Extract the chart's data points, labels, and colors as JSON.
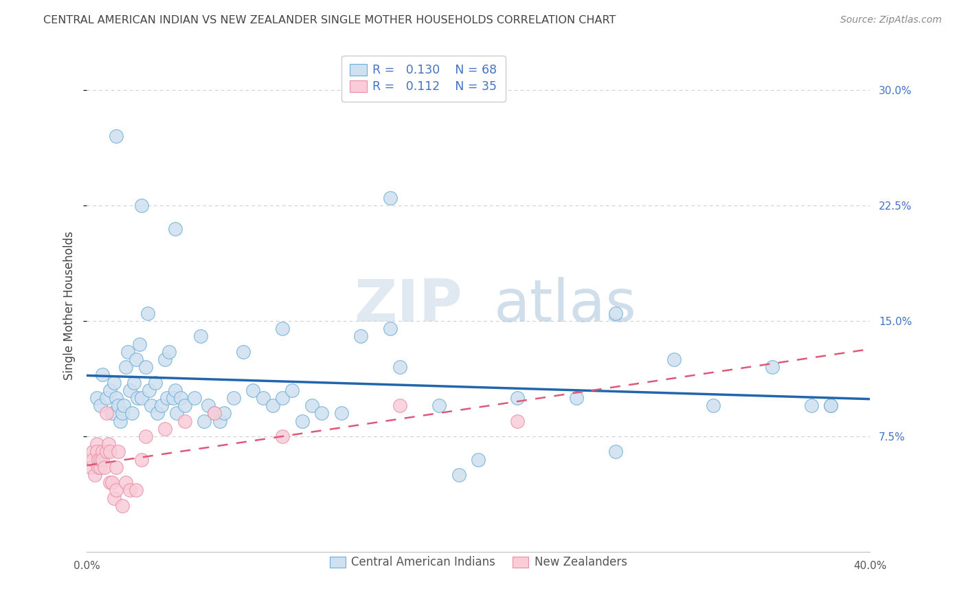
{
  "title": "CENTRAL AMERICAN INDIAN VS NEW ZEALANDER SINGLE MOTHER HOUSEHOLDS CORRELATION CHART",
  "source": "Source: ZipAtlas.com",
  "ylabel": "Single Mother Households",
  "xlim": [
    0.0,
    0.4
  ],
  "ylim": [
    0.0,
    0.32
  ],
  "yticks": [
    0.075,
    0.15,
    0.225,
    0.3
  ],
  "ytick_labels": [
    "7.5%",
    "15.0%",
    "22.5%",
    "30.0%"
  ],
  "legend_blue_r": "0.130",
  "legend_blue_n": "68",
  "legend_pink_r": "0.112",
  "legend_pink_n": "35",
  "legend_label_blue": "Central American Indians",
  "legend_label_pink": "New Zealanders",
  "blue_fill": "#cfe0f0",
  "blue_edge": "#6aaed6",
  "pink_fill": "#f9ccd8",
  "pink_edge": "#e88fa4",
  "blue_line_color": "#2166ac",
  "pink_line_color": "#e05878",
  "watermark_color": "#d8e8f4",
  "blue_scatter_x": [
    0.005,
    0.007,
    0.008,
    0.01,
    0.012,
    0.013,
    0.014,
    0.015,
    0.016,
    0.017,
    0.018,
    0.019,
    0.02,
    0.021,
    0.022,
    0.023,
    0.024,
    0.025,
    0.026,
    0.027,
    0.028,
    0.03,
    0.031,
    0.032,
    0.033,
    0.035,
    0.036,
    0.038,
    0.04,
    0.041,
    0.042,
    0.044,
    0.045,
    0.046,
    0.048,
    0.05,
    0.055,
    0.058,
    0.06,
    0.062,
    0.065,
    0.068,
    0.07,
    0.075,
    0.08,
    0.085,
    0.09,
    0.095,
    0.1,
    0.105,
    0.11,
    0.115,
    0.12,
    0.13,
    0.14,
    0.155,
    0.16,
    0.18,
    0.2,
    0.22,
    0.25,
    0.27,
    0.3,
    0.32,
    0.35,
    0.37,
    0.38,
    0.015
  ],
  "blue_scatter_y": [
    0.1,
    0.095,
    0.115,
    0.1,
    0.105,
    0.09,
    0.11,
    0.1,
    0.095,
    0.085,
    0.09,
    0.095,
    0.12,
    0.13,
    0.105,
    0.09,
    0.11,
    0.125,
    0.1,
    0.135,
    0.1,
    0.12,
    0.155,
    0.105,
    0.095,
    0.11,
    0.09,
    0.095,
    0.125,
    0.1,
    0.13,
    0.1,
    0.105,
    0.09,
    0.1,
    0.095,
    0.1,
    0.14,
    0.085,
    0.095,
    0.09,
    0.085,
    0.09,
    0.1,
    0.13,
    0.105,
    0.1,
    0.095,
    0.1,
    0.105,
    0.085,
    0.095,
    0.09,
    0.09,
    0.14,
    0.23,
    0.12,
    0.095,
    0.06,
    0.1,
    0.1,
    0.155,
    0.125,
    0.095,
    0.12,
    0.095,
    0.095,
    0.27
  ],
  "blue_scatter_x2": [
    0.028,
    0.045,
    0.1,
    0.155,
    0.19,
    0.27,
    0.38
  ],
  "blue_scatter_y2": [
    0.225,
    0.21,
    0.145,
    0.145,
    0.05,
    0.065,
    0.095
  ],
  "pink_scatter_x": [
    0.002,
    0.003,
    0.003,
    0.004,
    0.005,
    0.005,
    0.006,
    0.006,
    0.007,
    0.007,
    0.008,
    0.008,
    0.009,
    0.01,
    0.01,
    0.011,
    0.012,
    0.012,
    0.013,
    0.014,
    0.015,
    0.015,
    0.016,
    0.018,
    0.02,
    0.022,
    0.025,
    0.028,
    0.03,
    0.04,
    0.05,
    0.065,
    0.1,
    0.16,
    0.22
  ],
  "pink_scatter_y": [
    0.055,
    0.065,
    0.06,
    0.05,
    0.07,
    0.065,
    0.06,
    0.055,
    0.055,
    0.06,
    0.065,
    0.06,
    0.055,
    0.065,
    0.09,
    0.07,
    0.045,
    0.065,
    0.045,
    0.035,
    0.04,
    0.055,
    0.065,
    0.03,
    0.045,
    0.04,
    0.04,
    0.06,
    0.075,
    0.08,
    0.085,
    0.09,
    0.075,
    0.095,
    0.085
  ],
  "background_color": "#ffffff",
  "grid_color": "#cccccc",
  "title_color": "#444444",
  "right_axis_color": "#4472c4"
}
